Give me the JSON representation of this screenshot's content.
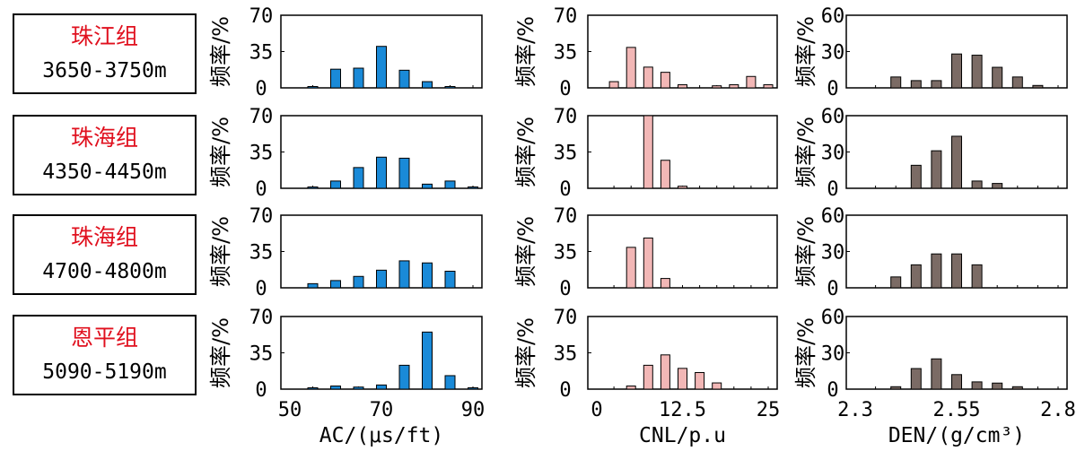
{
  "zones": [
    {
      "name": "珠江组",
      "depth": "3650-3750m"
    },
    {
      "name": "珠海组",
      "depth": "4350-4450m"
    },
    {
      "name": "珠海组",
      "depth": "4700-4800m"
    },
    {
      "name": "恩平组",
      "depth": "5090-5190m"
    }
  ],
  "colors": {
    "zone_name": "#e0101e",
    "ac": "#1a8ad8",
    "cnl": "#f2b7b6",
    "den": "#7b6b65",
    "frame": "#000000"
  },
  "chart_data": [
    {
      "type": "bar",
      "column": "AC",
      "ylabel": "频率/%",
      "xlabel": "AC/(μs/ft)",
      "xlim": [
        50,
        90
      ],
      "xtick_values": [
        50,
        70,
        90
      ],
      "xtick_labels": [
        "50",
        "70",
        "90"
      ],
      "ylim": [
        0,
        70
      ],
      "ytick_values": [
        0,
        35,
        70
      ],
      "ytick_labels": [
        "0",
        "35",
        "70"
      ],
      "categories": [
        55,
        60,
        65,
        70,
        75,
        80,
        85,
        90
      ],
      "series": [
        {
          "name": "珠江组 3650-3750m",
          "values": [
            1,
            18,
            19,
            40,
            17,
            6,
            1,
            0
          ]
        },
        {
          "name": "珠海组 4350-4450m",
          "values": [
            1,
            7,
            20,
            30,
            29,
            4,
            7,
            1
          ]
        },
        {
          "name": "珠海组 4700-4800m",
          "values": [
            4,
            7,
            11,
            17,
            26,
            24,
            16,
            0
          ]
        },
        {
          "name": "恩平组 5090-5190m",
          "values": [
            1,
            3,
            2,
            4,
            23,
            55,
            13,
            1
          ]
        }
      ]
    },
    {
      "type": "bar",
      "column": "CNL",
      "ylabel": "频率/%",
      "xlabel": "CNL/p.u",
      "xlim": [
        0,
        25
      ],
      "xtick_values": [
        0,
        12.5,
        25
      ],
      "xtick_labels": [
        "0",
        "12.5",
        "25"
      ],
      "ylim": [
        0,
        70
      ],
      "ytick_values": [
        0,
        35,
        70
      ],
      "ytick_labels": [
        "0",
        "35",
        "70"
      ],
      "categories": [
        2.5,
        5,
        7.5,
        10,
        12.5,
        15,
        17.5,
        20,
        22.5,
        25
      ],
      "series": [
        {
          "name": "珠江组 3650-3750m",
          "values": [
            6,
            39,
            20,
            15,
            3,
            0,
            2,
            3,
            11,
            3
          ]
        },
        {
          "name": "珠海组 4350-4450m",
          "values": [
            0,
            0,
            70,
            27,
            2,
            0,
            0,
            0,
            0,
            0
          ]
        },
        {
          "name": "珠海组 4700-4800m",
          "values": [
            0,
            39,
            48,
            9,
            0,
            0,
            0,
            0,
            0,
            0
          ]
        },
        {
          "name": "恩平组 5090-5190m",
          "values": [
            0,
            3,
            23,
            33,
            20,
            16,
            6,
            0,
            0,
            0
          ]
        }
      ]
    },
    {
      "type": "bar",
      "column": "DEN",
      "ylabel": "频率/%",
      "xlabel": "DEN/(g/cm³)",
      "xlim": [
        2.3,
        2.8
      ],
      "xtick_values": [
        2.3,
        2.55,
        2.8
      ],
      "xtick_labels": [
        "2.3",
        "2.55",
        "2.8"
      ],
      "ylim": [
        0,
        60
      ],
      "ytick_values": [
        0,
        30,
        60
      ],
      "ytick_labels": [
        "0",
        "30",
        "60"
      ],
      "categories": [
        2.35,
        2.4,
        2.45,
        2.5,
        2.55,
        2.6,
        2.65,
        2.7,
        2.75,
        2.8
      ],
      "series": [
        {
          "name": "珠江组 3650-3750m",
          "values": [
            0,
            9,
            6,
            6,
            28,
            27,
            17,
            9,
            2,
            0
          ]
        },
        {
          "name": "珠海组 4350-4450m",
          "values": [
            0,
            0,
            19,
            31,
            43,
            6,
            4,
            0,
            0,
            0
          ]
        },
        {
          "name": "珠海组 4700-4800m",
          "values": [
            0,
            9,
            19,
            28,
            28,
            19,
            0,
            0,
            0,
            0
          ]
        },
        {
          "name": "恩平组 5090-5190m",
          "values": [
            0,
            2,
            17,
            25,
            12,
            6,
            5,
            2,
            0,
            0
          ]
        }
      ]
    }
  ]
}
